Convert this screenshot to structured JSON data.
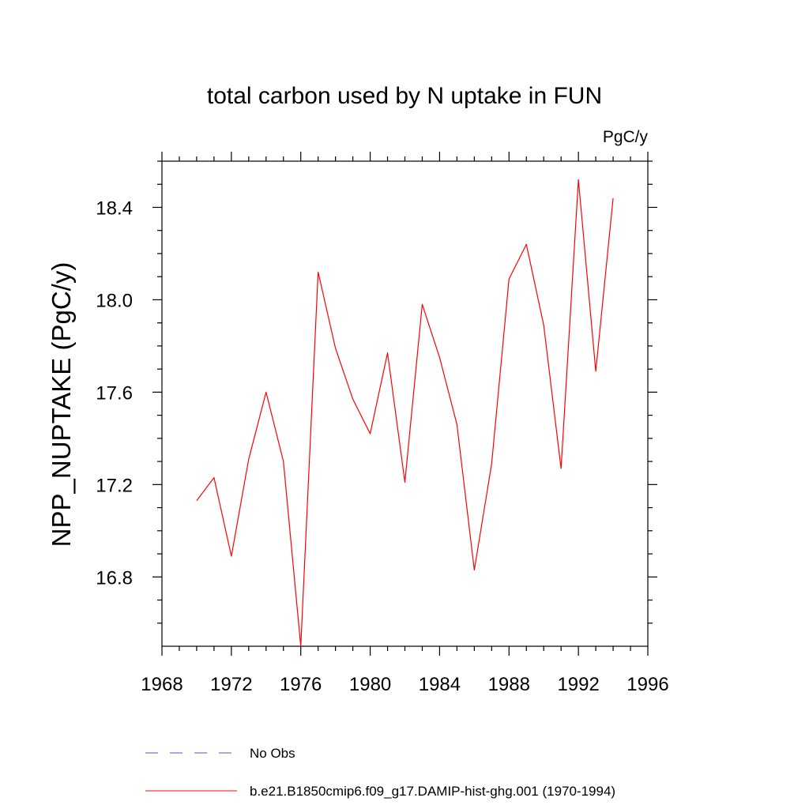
{
  "chart_data": {
    "type": "line",
    "title": "total carbon used by N uptake in FUN",
    "units": "PgC/y",
    "xlabel": "",
    "ylabel": "NPP_NUPTAKE  (PgC/y)",
    "xlim": [
      1968,
      1996
    ],
    "ylim": [
      16.5,
      18.6
    ],
    "xticks": [
      1968,
      1972,
      1976,
      1980,
      1984,
      1988,
      1992,
      1996
    ],
    "xtick_labels": [
      "1968",
      "1972",
      "1976",
      "1980",
      "1984",
      "1988",
      "1992",
      "1996"
    ],
    "yticks": [
      16.8,
      17.2,
      17.6,
      18.0,
      18.4
    ],
    "ytick_labels": [
      "16.8",
      "17.2",
      "17.6",
      "18.0",
      "18.4"
    ],
    "grid": false,
    "legend_position": "bottom",
    "legend": [
      {
        "label": "No Obs",
        "style": "dashed",
        "color": "#5555bb"
      },
      {
        "label": "b.e21.B1850cmip6.f09_g17.DAMIP-hist-ghg.001 (1970-1994)",
        "style": "solid",
        "color": "#ff0000"
      }
    ],
    "series": [
      {
        "name": "b.e21.B1850cmip6.f09_g17.DAMIP-hist-ghg.001 (1970-1994)",
        "color": "#ff0000",
        "x": [
          1970,
          1971,
          1972,
          1973,
          1974,
          1975,
          1976,
          1977,
          1978,
          1979,
          1980,
          1981,
          1982,
          1983,
          1984,
          1985,
          1986,
          1987,
          1988,
          1989,
          1990,
          1991,
          1992,
          1993,
          1994
        ],
        "y": [
          17.13,
          17.23,
          16.89,
          17.31,
          17.6,
          17.3,
          16.5,
          18.12,
          17.79,
          17.57,
          17.42,
          17.77,
          17.21,
          17.98,
          17.75,
          17.46,
          16.83,
          17.29,
          18.09,
          18.24,
          17.89,
          17.27,
          18.52,
          17.69,
          18.44
        ]
      }
    ]
  }
}
